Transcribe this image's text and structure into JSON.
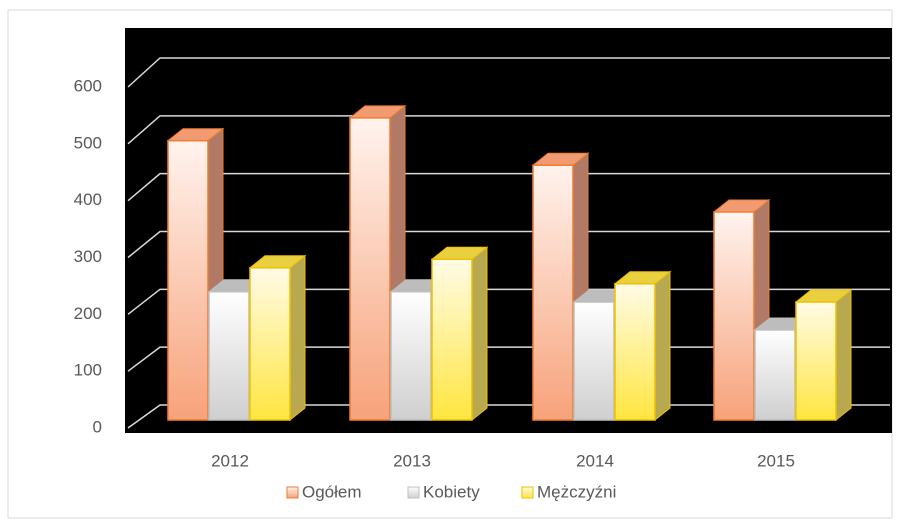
{
  "chart_data": {
    "type": "bar3d",
    "categories": [
      "2012",
      "2013",
      "2014",
      "2015"
    ],
    "series": [
      {
        "name": "Ogółem",
        "color": "#f7a27a",
        "values": [
          490,
          530,
          447,
          365
        ]
      },
      {
        "name": "Kobiety",
        "color": "#d4d4d4",
        "values": [
          225,
          225,
          207,
          158
        ]
      },
      {
        "name": "Mężczyźni",
        "color": "#ffe640",
        "values": [
          267,
          282,
          239,
          207
        ]
      }
    ],
    "ylim": [
      0,
      600
    ],
    "yticks": [
      0,
      100,
      200,
      300,
      400,
      500,
      600
    ],
    "grid": true,
    "legend": "bottom"
  }
}
